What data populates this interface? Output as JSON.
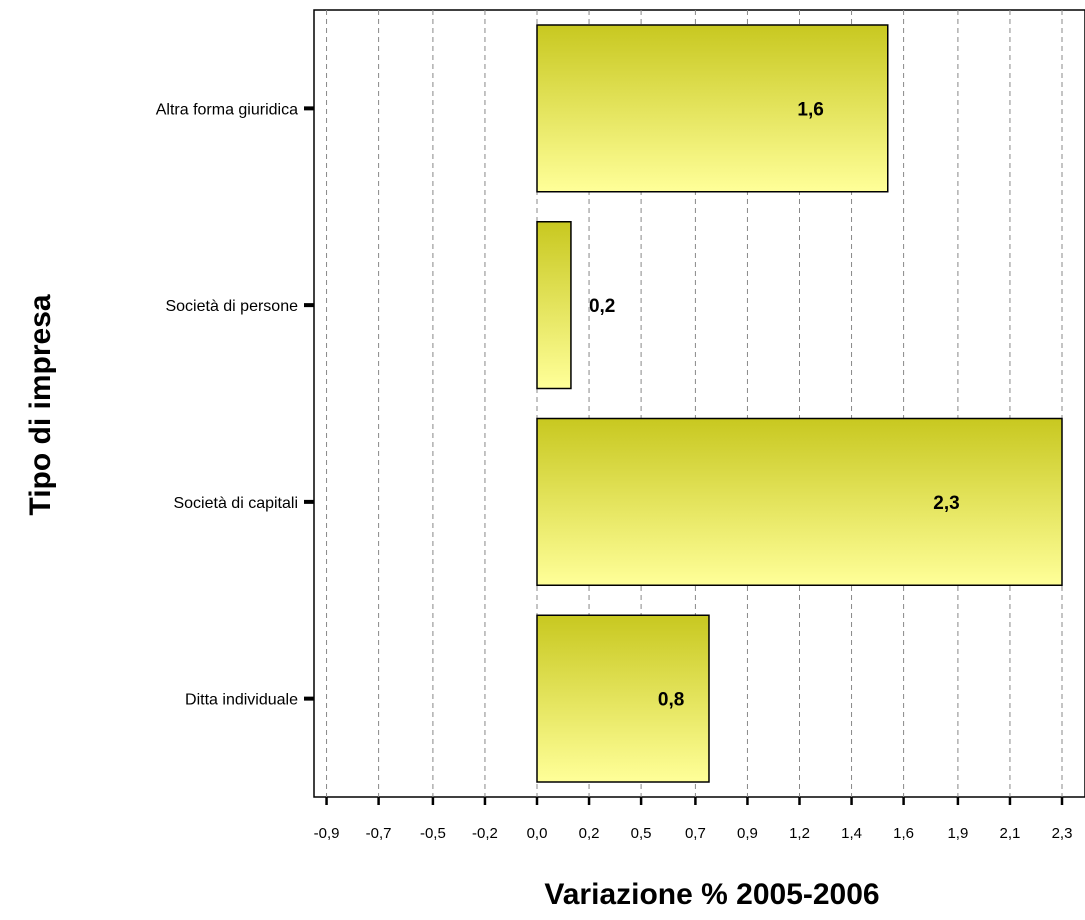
{
  "chart_data": {
    "type": "bar",
    "orientation": "horizontal",
    "categories": [
      "Altra forma giuridica",
      "Società di persone",
      "Società di capitali",
      "Ditta individuale"
    ],
    "values": [
      1.55,
      0.15,
      2.32,
      0.76
    ],
    "data_labels": [
      "1,6",
      "0,2",
      "2,3",
      "0,8"
    ],
    "xlabel": "Variazione % 2005-2006",
    "ylabel": "Tipo di impresa",
    "x_ticks": [
      -0.93,
      -0.7,
      -0.46,
      -0.23,
      0.0,
      0.23,
      0.46,
      0.7,
      0.93,
      1.16,
      1.39,
      1.62,
      1.86,
      2.09,
      2.32
    ],
    "x_tick_labels": [
      "-0,9",
      "-0,7",
      "-0,5",
      "-0,2",
      "0,0",
      "0,2",
      "0,5",
      "0,7",
      "0,9",
      "1,2",
      "1,4",
      "1,6",
      "1,9",
      "2,1",
      "2,3"
    ],
    "xlim": [
      -1.0,
      2.4
    ],
    "grid": "vertical dashed",
    "legend": "none",
    "bar_color_top": "#c8c820",
    "bar_color_bottom": "#ffff99",
    "bar_stroke": "#000000"
  }
}
